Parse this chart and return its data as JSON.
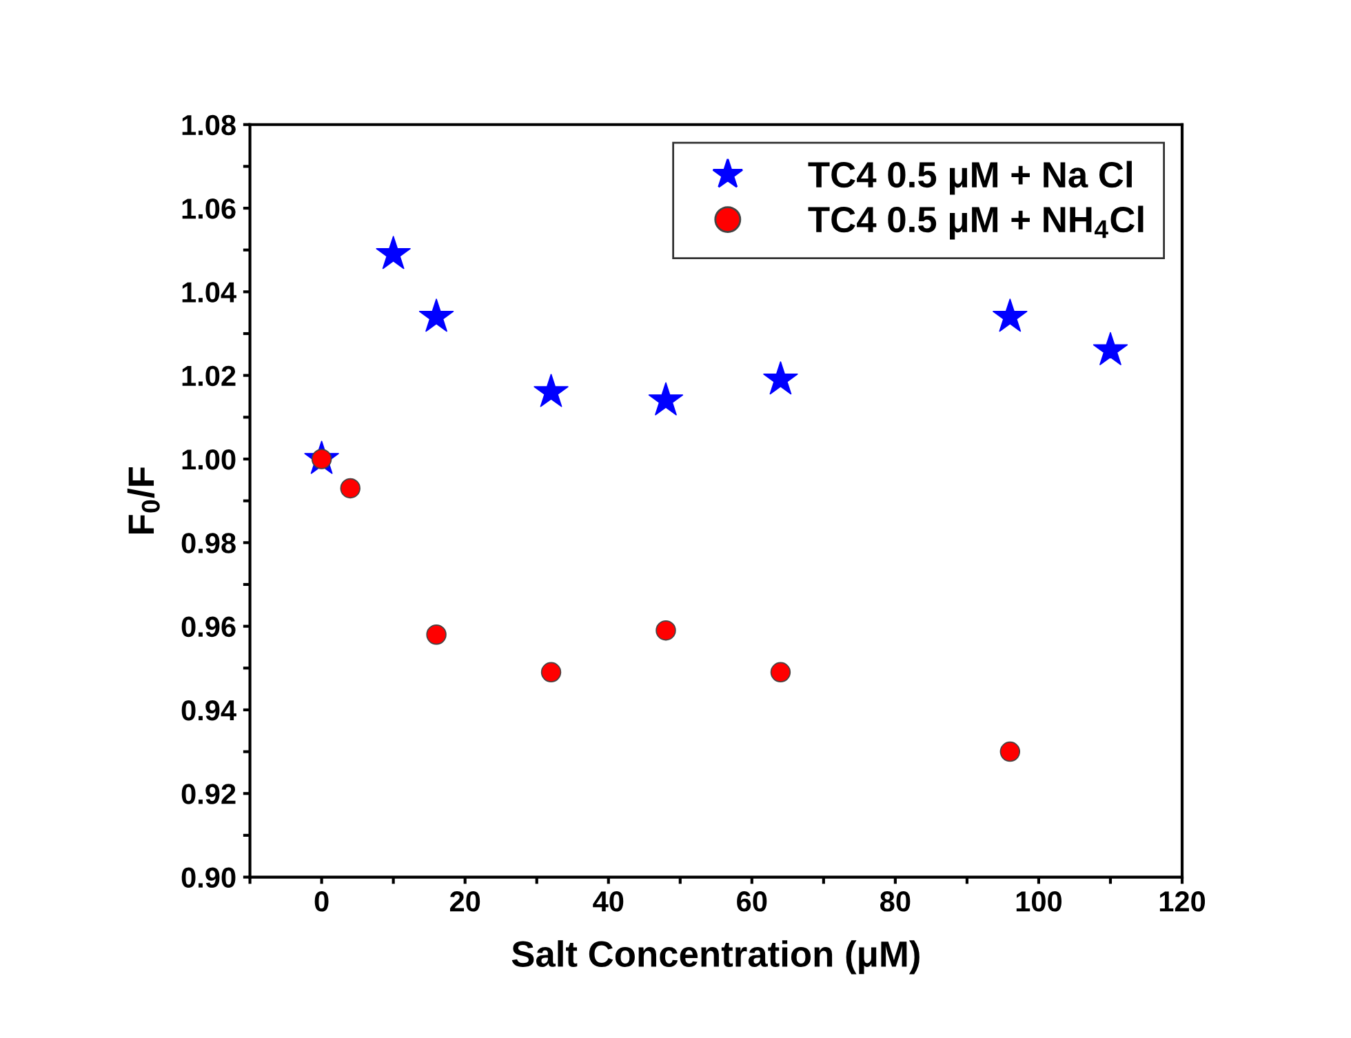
{
  "chart_data": {
    "type": "scatter",
    "xlabel": "Salt Concentration (μM)",
    "ylabel": "F$_{0}$/F",
    "xlim": [
      -10,
      120
    ],
    "ylim": [
      0.9,
      1.08
    ],
    "xticks": [
      {
        "value": -10,
        "label": null
      },
      0,
      {
        "value": 10,
        "label": null
      },
      20,
      {
        "value": 30,
        "label": null
      },
      40,
      {
        "value": 50,
        "label": null
      },
      60,
      {
        "value": 70,
        "label": null
      },
      80,
      {
        "value": 90,
        "label": null
      },
      100,
      {
        "value": 110,
        "label": null
      },
      120
    ],
    "yticks": [
      {
        "value": 0.9,
        "label": "0.90"
      },
      {
        "value": 0.91,
        "label": null
      },
      {
        "value": 0.92,
        "label": "0.92"
      },
      {
        "value": 0.93,
        "label": null
      },
      {
        "value": 0.94,
        "label": "0.94"
      },
      {
        "value": 0.95,
        "label": null
      },
      {
        "value": 0.96,
        "label": "0.96"
      },
      {
        "value": 0.97,
        "label": null
      },
      {
        "value": 0.98,
        "label": "0.98"
      },
      {
        "value": 0.99,
        "label": null
      },
      {
        "value": 1.0,
        "label": "1.00"
      },
      {
        "value": 1.01,
        "label": null
      },
      {
        "value": 1.02,
        "label": "1.02"
      },
      {
        "value": 1.03,
        "label": null
      },
      {
        "value": 1.04,
        "label": "1.04"
      },
      {
        "value": 1.05,
        "label": null
      },
      {
        "value": 1.06,
        "label": "1.06"
      },
      {
        "value": 1.07,
        "label": null
      },
      {
        "value": 1.08,
        "label": "1.08"
      }
    ],
    "grid": false,
    "legend": "top right",
    "series": [
      {
        "name": "TC4 0.5 μM + Na Cl",
        "color": "#0000ff",
        "marker": "star",
        "x": [
          0,
          10,
          16,
          32,
          48,
          64,
          96,
          110
        ],
        "values": [
          1.0,
          1.049,
          1.034,
          1.016,
          1.014,
          1.019,
          1.034,
          1.026
        ]
      },
      {
        "name": "TC4 0.5 μM + NH$_{4}$Cl",
        "color": "#ff0000",
        "marker": "circle",
        "x": [
          0,
          4,
          16,
          32,
          48,
          64,
          96
        ],
        "values": [
          1.0,
          0.993,
          0.958,
          0.949,
          0.959,
          0.949,
          0.93
        ]
      }
    ]
  }
}
